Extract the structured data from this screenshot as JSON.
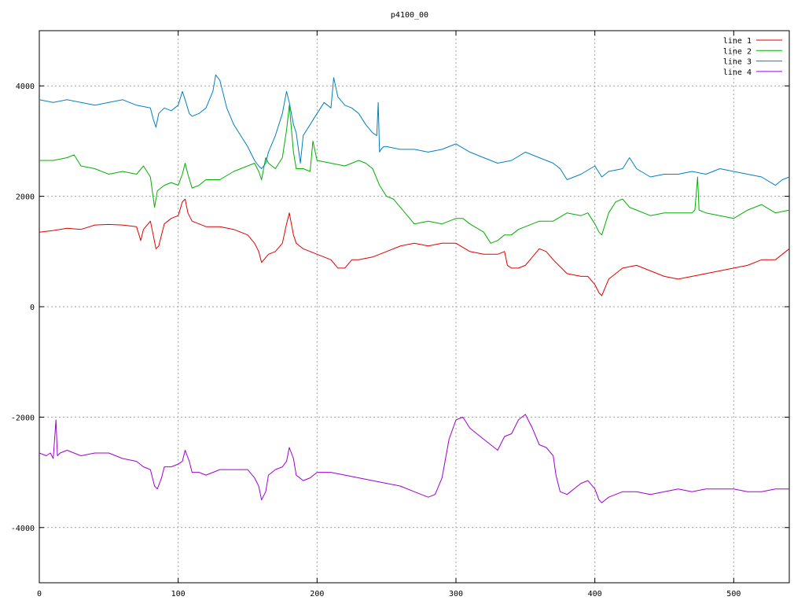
{
  "chart_data": {
    "type": "line",
    "title": "p4100_00",
    "xlim": [
      0,
      540
    ],
    "ylim": [
      -5000,
      5000
    ],
    "x_ticks": [
      0,
      100,
      200,
      300,
      400,
      500
    ],
    "y_ticks": [
      -4000,
      -2000,
      0,
      2000,
      4000
    ],
    "x_tick_labels": [
      "0",
      "100",
      "200",
      "300",
      "400",
      "500"
    ],
    "y_tick_labels": [
      "-4000",
      "-2000",
      "0",
      "2000",
      "4000"
    ],
    "grid": true,
    "legend_position": "top-right",
    "series": [
      {
        "name": "line 1",
        "color": "#e00000",
        "x": [
          0,
          10,
          20,
          30,
          40,
          50,
          60,
          70,
          73,
          75,
          80,
          82,
          84,
          86,
          90,
          95,
          100,
          103,
          105,
          107,
          110,
          115,
          120,
          130,
          140,
          150,
          155,
          158,
          160,
          165,
          170,
          175,
          178,
          180,
          183,
          185,
          190,
          195,
          200,
          205,
          210,
          215,
          220,
          225,
          230,
          240,
          250,
          260,
          270,
          280,
          290,
          300,
          310,
          320,
          330,
          335,
          337,
          340,
          345,
          350,
          355,
          360,
          365,
          370,
          380,
          390,
          395,
          400,
          403,
          405,
          410,
          420,
          430,
          440,
          450,
          460,
          470,
          480,
          490,
          500,
          510,
          520,
          530,
          535,
          540
        ],
        "y": [
          1350,
          1380,
          1420,
          1400,
          1480,
          1490,
          1480,
          1450,
          1200,
          1400,
          1550,
          1300,
          1050,
          1100,
          1500,
          1600,
          1650,
          1900,
          1950,
          1700,
          1550,
          1500,
          1450,
          1450,
          1400,
          1300,
          1150,
          1000,
          800,
          950,
          1000,
          1150,
          1500,
          1700,
          1300,
          1150,
          1050,
          1000,
          950,
          900,
          850,
          700,
          700,
          850,
          850,
          900,
          1000,
          1100,
          1150,
          1100,
          1150,
          1150,
          1000,
          950,
          950,
          1000,
          750,
          700,
          700,
          750,
          900,
          1050,
          1000,
          850,
          600,
          550,
          550,
          400,
          250,
          200,
          500,
          700,
          750,
          650,
          550,
          500,
          550,
          600,
          650,
          700,
          750,
          850,
          850,
          950,
          1050
        ]
      },
      {
        "name": "line 2",
        "color": "#00b000",
        "x": [
          0,
          10,
          20,
          25,
          30,
          40,
          50,
          60,
          70,
          75,
          80,
          83,
          85,
          90,
          95,
          100,
          103,
          105,
          107,
          110,
          115,
          120,
          130,
          140,
          150,
          155,
          158,
          160,
          163,
          165,
          170,
          175,
          178,
          180,
          183,
          185,
          190,
          195,
          197,
          200,
          210,
          220,
          230,
          235,
          240,
          245,
          250,
          255,
          260,
          270,
          280,
          290,
          300,
          305,
          310,
          320,
          325,
          330,
          335,
          340,
          345,
          350,
          360,
          370,
          380,
          390,
          395,
          400,
          403,
          405,
          410,
          415,
          420,
          425,
          430,
          440,
          450,
          460,
          470,
          472,
          474,
          475,
          480,
          490,
          500,
          510,
          520,
          530,
          540
        ],
        "y": [
          2650,
          2650,
          2700,
          2750,
          2550,
          2500,
          2400,
          2450,
          2400,
          2550,
          2350,
          1800,
          2100,
          2200,
          2250,
          2200,
          2400,
          2600,
          2400,
          2150,
          2200,
          2300,
          2300,
          2450,
          2550,
          2600,
          2450,
          2300,
          2700,
          2600,
          2500,
          2700,
          3200,
          3650,
          2800,
          2500,
          2500,
          2450,
          3000,
          2650,
          2600,
          2550,
          2650,
          2600,
          2500,
          2200,
          2000,
          1950,
          1800,
          1500,
          1550,
          1500,
          1600,
          1600,
          1500,
          1350,
          1150,
          1200,
          1300,
          1300,
          1400,
          1450,
          1550,
          1550,
          1700,
          1650,
          1700,
          1500,
          1350,
          1300,
          1700,
          1900,
          1950,
          1800,
          1750,
          1650,
          1700,
          1700,
          1700,
          1750,
          2350,
          1750,
          1700,
          1650,
          1600,
          1750,
          1850,
          1700,
          1750
        ]
      },
      {
        "name": "line 3",
        "color": "#0080c0",
        "x": [
          0,
          10,
          20,
          30,
          40,
          50,
          60,
          70,
          80,
          82,
          84,
          86,
          90,
          95,
          100,
          103,
          105,
          108,
          110,
          115,
          120,
          125,
          127,
          130,
          135,
          140,
          145,
          150,
          155,
          158,
          160,
          163,
          165,
          170,
          175,
          178,
          180,
          183,
          185,
          188,
          190,
          195,
          200,
          205,
          210,
          212,
          215,
          220,
          225,
          230,
          235,
          240,
          243,
          244,
          245,
          246,
          248,
          250,
          260,
          270,
          280,
          290,
          300,
          310,
          320,
          330,
          340,
          350,
          360,
          370,
          375,
          380,
          390,
          400,
          405,
          410,
          420,
          425,
          430,
          440,
          450,
          460,
          470,
          480,
          490,
          500,
          510,
          520,
          530,
          535,
          540
        ],
        "y": [
          3750,
          3700,
          3750,
          3700,
          3650,
          3700,
          3750,
          3650,
          3600,
          3400,
          3250,
          3500,
          3600,
          3550,
          3650,
          3900,
          3750,
          3500,
          3450,
          3500,
          3600,
          3900,
          4200,
          4100,
          3600,
          3300,
          3100,
          2900,
          2650,
          2550,
          2500,
          2600,
          2800,
          3100,
          3500,
          3900,
          3700,
          3300,
          3150,
          2600,
          3100,
          3300,
          3500,
          3700,
          3600,
          4150,
          3800,
          3650,
          3600,
          3500,
          3300,
          3150,
          3100,
          3700,
          2800,
          2850,
          2900,
          2900,
          2850,
          2850,
          2800,
          2850,
          2950,
          2800,
          2700,
          2600,
          2650,
          2800,
          2700,
          2600,
          2500,
          2300,
          2400,
          2550,
          2350,
          2450,
          2500,
          2700,
          2500,
          2350,
          2400,
          2400,
          2450,
          2400,
          2500,
          2450,
          2400,
          2350,
          2200,
          2300,
          2350
        ]
      },
      {
        "name": "line 4",
        "color": "#a000d0",
        "x": [
          0,
          5,
          8,
          10,
          12,
          13,
          15,
          20,
          30,
          40,
          50,
          60,
          70,
          75,
          80,
          83,
          85,
          88,
          90,
          95,
          100,
          103,
          105,
          108,
          110,
          115,
          120,
          130,
          140,
          150,
          155,
          158,
          160,
          163,
          165,
          170,
          175,
          178,
          180,
          183,
          185,
          190,
          195,
          200,
          210,
          220,
          230,
          240,
          250,
          260,
          270,
          275,
          280,
          285,
          290,
          295,
          300,
          305,
          310,
          320,
          325,
          330,
          335,
          340,
          345,
          350,
          355,
          360,
          365,
          370,
          372,
          375,
          380,
          390,
          395,
          400,
          403,
          405,
          410,
          420,
          430,
          440,
          450,
          460,
          470,
          480,
          490,
          500,
          510,
          520,
          530,
          540
        ],
        "y": [
          -2650,
          -2700,
          -2650,
          -2750,
          -2050,
          -2700,
          -2650,
          -2600,
          -2700,
          -2650,
          -2650,
          -2750,
          -2800,
          -2900,
          -2950,
          -3250,
          -3300,
          -3100,
          -2900,
          -2900,
          -2850,
          -2800,
          -2600,
          -2800,
          -3000,
          -3000,
          -3050,
          -2950,
          -2950,
          -2950,
          -3100,
          -3250,
          -3500,
          -3350,
          -3050,
          -2950,
          -2900,
          -2800,
          -2550,
          -2750,
          -3050,
          -3150,
          -3100,
          -3000,
          -3000,
          -3050,
          -3100,
          -3150,
          -3200,
          -3250,
          -3350,
          -3400,
          -3450,
          -3400,
          -3100,
          -2400,
          -2050,
          -2000,
          -2200,
          -2400,
          -2500,
          -2600,
          -2350,
          -2300,
          -2050,
          -1950,
          -2200,
          -2500,
          -2550,
          -2700,
          -3050,
          -3350,
          -3400,
          -3200,
          -3150,
          -3300,
          -3500,
          -3550,
          -3450,
          -3350,
          -3350,
          -3400,
          -3350,
          -3300,
          -3350,
          -3300,
          -3300,
          -3300,
          -3350,
          -3350,
          -3300,
          -3300
        ]
      }
    ]
  }
}
